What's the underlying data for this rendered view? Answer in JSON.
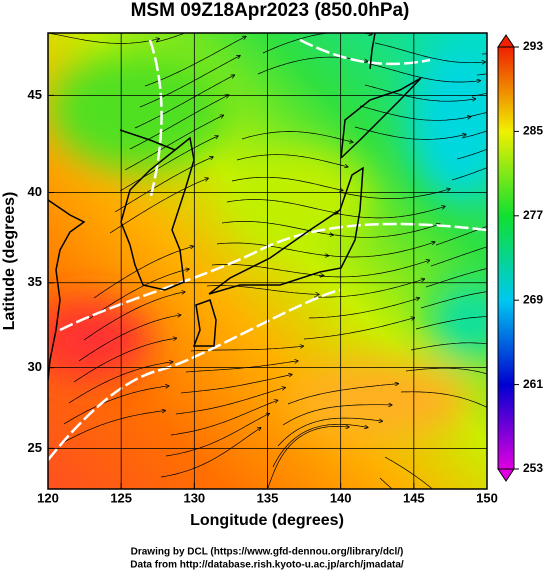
{
  "title": "MSM 09Z18Apr2023 (850.0hPa)",
  "map": {
    "xlabel": "Longitude (degrees)",
    "ylabel": "Latitude  (degrees)",
    "xlim": [
      120,
      150
    ],
    "ylim": [
      22.4,
      48
    ],
    "projection": "mercator",
    "xticks": [
      120,
      125,
      130,
      135,
      140,
      145,
      150
    ],
    "yticks": [
      25,
      30,
      35,
      40,
      45
    ],
    "grid": true
  },
  "colorbar": {
    "lim": [
      253,
      293
    ],
    "ticks": [
      253,
      261,
      269,
      277,
      285,
      293
    ]
  },
  "footer": [
    "Drawing by DCL (https://www.gfd-dennou.org/library/dcl/)",
    "Data from http://database.rish.kyoto-u.ac.jp/arch/jmadata/"
  ]
}
